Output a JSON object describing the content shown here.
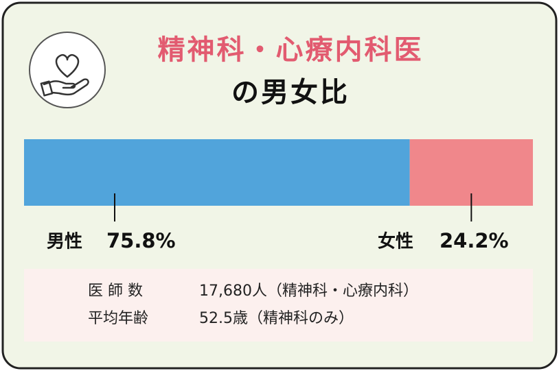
{
  "chart_data": {
    "type": "stacked-bar",
    "title": "精神科・心療内科医",
    "subtitle": "の男女比",
    "series": [
      {
        "name": "男性",
        "color": "#51a4db",
        "values": [
          75.8
        ],
        "value_labels": [
          "75.8%"
        ]
      },
      {
        "name": "女性",
        "color": "#f0878b",
        "values": [
          24.2
        ],
        "value_labels": [
          "24.2%"
        ]
      }
    ],
    "notes": [
      {
        "label": "医 師 数",
        "text": "17,680人（精神科・心療内科）"
      },
      {
        "label": "平均年齢",
        "text": "52.5歳（精神科のみ）"
      }
    ]
  }
}
